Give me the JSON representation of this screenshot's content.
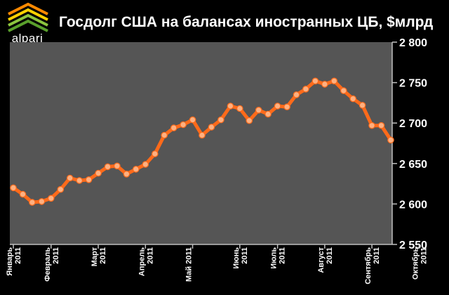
{
  "logo": {
    "text": "alpari",
    "colors": [
      "#ff8a00",
      "#ffd200",
      "#8dc63f",
      "#5aa02c"
    ]
  },
  "chart_data": {
    "type": "line",
    "title": "Госдолг США на балансах иностранных ЦБ, $млрд",
    "xlabel": "",
    "ylabel": "",
    "ylim": [
      2550,
      2800
    ],
    "yticks": [
      2550,
      2600,
      2650,
      2700,
      2750,
      2800
    ],
    "ytick_labels": [
      "2 550",
      "2 600",
      "2 650",
      "2 700",
      "2 750",
      "2 800"
    ],
    "grid": false,
    "legend": "none",
    "colors": {
      "background": "#000000",
      "plot_area": "#555555",
      "line": "#ff6a1a",
      "marker": "#ffb080"
    },
    "x_labels": [
      {
        "index": 0,
        "line1": "Январь",
        "line2": "2011"
      },
      {
        "index": 4,
        "line1": "Февраль",
        "line2": "2011"
      },
      {
        "index": 9,
        "line1": "Март",
        "line2": "2011"
      },
      {
        "index": 14,
        "line1": "Апрель",
        "line2": "2011"
      },
      {
        "index": 19,
        "line1": "Май 2011",
        "line2": ""
      },
      {
        "index": 24,
        "line1": "Июнь",
        "line2": "2011"
      },
      {
        "index": 28,
        "line1": "Июль",
        "line2": "2011"
      },
      {
        "index": 33,
        "line1": "Август",
        "line2": "2011"
      },
      {
        "index": 38,
        "line1": "Сентябрь",
        "line2": "2011"
      },
      {
        "index": 43,
        "line1": "Октябрь",
        "line2": "2011"
      }
    ],
    "series": [
      {
        "values": [
          2620,
          2612,
          2602,
          2603,
          2607,
          2618,
          2632,
          2629,
          2630,
          2638,
          2646,
          2647,
          2637,
          2643,
          2649,
          2662,
          2685,
          2694,
          2698,
          2704,
          2685,
          2695,
          2704,
          2721,
          2718,
          2703,
          2716,
          2711,
          2721,
          2720,
          2735,
          2742,
          2752,
          2748,
          2752,
          2740,
          2730,
          2722,
          2697,
          2697,
          2679
        ]
      }
    ]
  }
}
